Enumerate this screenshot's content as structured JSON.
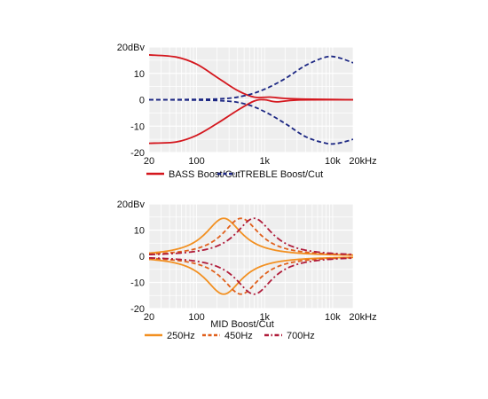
{
  "chart_data": [
    {
      "type": "line",
      "title": "",
      "xlabel": "",
      "ylabel": "",
      "x_scale": "log",
      "xlim": [
        20,
        20000
      ],
      "ylim": [
        -20,
        20
      ],
      "grid": true,
      "legend_position": "bottom",
      "y_ticks": [
        {
          "v": 20,
          "label": "20dBv"
        },
        {
          "v": 10,
          "label": "10"
        },
        {
          "v": 0,
          "label": "0"
        },
        {
          "v": -10,
          "label": "-10"
        },
        {
          "v": -20,
          "label": "-20"
        }
      ],
      "x_ticks": [
        {
          "v": 20,
          "label": "20"
        },
        {
          "v": 100,
          "label": "100"
        },
        {
          "v": 1000,
          "label": "1k"
        },
        {
          "v": 10000,
          "label": "10k"
        },
        {
          "v": 20000,
          "label": "20kHz"
        }
      ],
      "series": [
        {
          "name": "BASS Boost/Cut",
          "color": "#d4171e",
          "dash": "solid",
          "paired": true,
          "points": [
            [
              20,
              17
            ],
            [
              50,
              16.2
            ],
            [
              100,
              13.5
            ],
            [
              200,
              8.5
            ],
            [
              400,
              3.5
            ],
            [
              700,
              1
            ],
            [
              1200,
              1
            ],
            [
              2000,
              0.5
            ],
            [
              5000,
              0.2
            ],
            [
              20000,
              0
            ]
          ]
        },
        {
          "name": "",
          "color": "#d4171e",
          "dash": "solid",
          "points": [
            [
              20,
              -16.5
            ],
            [
              50,
              -16
            ],
            [
              100,
              -13.5
            ],
            [
              200,
              -9
            ],
            [
              400,
              -4
            ],
            [
              700,
              -0.5
            ],
            [
              1000,
              0
            ],
            [
              1500,
              -0.8
            ],
            [
              3000,
              -0.1
            ],
            [
              20000,
              0
            ]
          ]
        },
        {
          "name": "TREBLE Boost/Cut",
          "color": "#1c2783",
          "dash": "dash",
          "paired": true,
          "points": [
            [
              20,
              0
            ],
            [
              200,
              0.3
            ],
            [
              500,
              1.5
            ],
            [
              1000,
              4
            ],
            [
              2000,
              8
            ],
            [
              4000,
              13
            ],
            [
              8000,
              16.2
            ],
            [
              12000,
              16
            ],
            [
              20000,
              14
            ]
          ]
        },
        {
          "name": "",
          "color": "#1c2783",
          "dash": "dash",
          "points": [
            [
              20,
              0
            ],
            [
              200,
              -0.3
            ],
            [
              500,
              -1.5
            ],
            [
              1000,
              -4.5
            ],
            [
              2000,
              -9
            ],
            [
              4000,
              -14
            ],
            [
              8000,
              -16.5
            ],
            [
              12000,
              -16.5
            ],
            [
              20000,
              -15
            ]
          ]
        }
      ]
    },
    {
      "type": "line",
      "title": "",
      "xlabel": "MID Boost/Cut",
      "ylabel": "",
      "x_scale": "log",
      "xlim": [
        20,
        20000
      ],
      "ylim": [
        -20,
        20
      ],
      "grid": true,
      "legend_position": "bottom",
      "y_ticks": [
        {
          "v": 20,
          "label": "20dBv"
        },
        {
          "v": 10,
          "label": "10"
        },
        {
          "v": 0,
          "label": "0"
        },
        {
          "v": -10,
          "label": "-10"
        },
        {
          "v": -20,
          "label": "-20"
        }
      ],
      "x_ticks": [
        {
          "v": 20,
          "label": "20"
        },
        {
          "v": 100,
          "label": "100"
        },
        {
          "v": 1000,
          "label": "1k"
        },
        {
          "v": 10000,
          "label": "10k"
        },
        {
          "v": 20000,
          "label": "20kHz"
        }
      ],
      "series": [
        {
          "name": "250Hz",
          "color": "#f29021",
          "dash": "solid",
          "peak_freq": 250,
          "peak_gain": 14.5
        },
        {
          "name": "450Hz",
          "color": "#e0601c",
          "dash": "dash",
          "peak_freq": 450,
          "peak_gain": 14.5
        },
        {
          "name": "700Hz",
          "color": "#b01c3a",
          "dash": "dashdot",
          "peak_freq": 700,
          "peak_gain": 14.5
        }
      ]
    }
  ]
}
